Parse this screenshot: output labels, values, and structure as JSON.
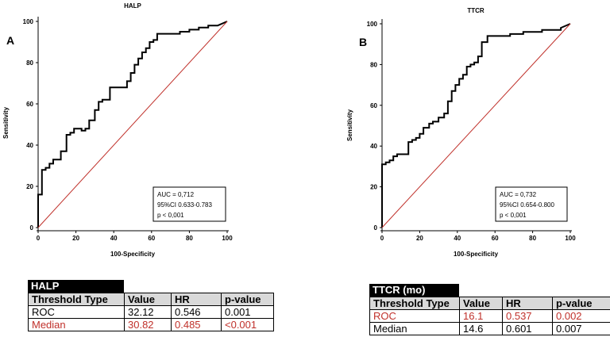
{
  "chart_data": [
    {
      "type": "line",
      "panel_label": "A",
      "title": "HALP",
      "xlabel": "100-Specificity",
      "ylabel": "Sensitivity",
      "xlim": [
        0,
        100
      ],
      "ylim": [
        0,
        100
      ],
      "x_ticks": [
        "0",
        "20",
        "40",
        "60",
        "80",
        "100"
      ],
      "y_ticks": [
        "0",
        "20",
        "40",
        "60",
        "80",
        "100"
      ],
      "series": [
        {
          "name": "ROC curve",
          "color": "#000000",
          "x": [
            0,
            0,
            2,
            2,
            4,
            4,
            6,
            6,
            8,
            8,
            10,
            10,
            12,
            12,
            15,
            15,
            17,
            17,
            19,
            19,
            23,
            23,
            25,
            25,
            27,
            27,
            30,
            30,
            32,
            32,
            34,
            34,
            38,
            38,
            40,
            40,
            42,
            42,
            47,
            47,
            49,
            49,
            51,
            51,
            53,
            53,
            55,
            55,
            57,
            57,
            59,
            59,
            61,
            61,
            63,
            63,
            67,
            67,
            75,
            75,
            80,
            80,
            85,
            85,
            90,
            90,
            95,
            95,
            100
          ],
          "y": [
            0,
            16,
            16,
            28,
            28,
            29,
            29,
            31,
            31,
            33,
            33,
            33,
            33,
            37,
            37,
            45,
            45,
            46,
            46,
            48,
            48,
            47,
            47,
            48,
            48,
            52,
            52,
            57,
            57,
            61,
            61,
            62,
            62,
            68,
            68,
            68,
            68,
            68,
            68,
            71,
            71,
            75,
            75,
            79,
            79,
            82,
            82,
            85,
            85,
            87,
            87,
            90,
            90,
            91,
            91,
            94,
            94,
            94,
            94,
            95,
            95,
            96,
            96,
            97,
            97,
            98,
            98,
            98,
            100
          ]
        },
        {
          "name": "Reference line",
          "color": "#c0312b",
          "x": [
            0,
            100
          ],
          "y": [
            0,
            100
          ]
        }
      ],
      "annotation": [
        "AUC = 0,712",
        "95%CI 0.633-0.783",
        "p < 0,001"
      ]
    },
    {
      "type": "line",
      "panel_label": "B",
      "title": "TTCR",
      "xlabel": "100-Specificity",
      "ylabel": "Sensitivity",
      "xlim": [
        0,
        100
      ],
      "ylim": [
        0,
        100
      ],
      "x_ticks": [
        "0",
        "20",
        "40",
        "60",
        "80",
        "100"
      ],
      "y_ticks": [
        "0",
        "20",
        "40",
        "60",
        "80",
        "100"
      ],
      "series": [
        {
          "name": "ROC curve",
          "color": "#000000",
          "x": [
            0,
            0,
            2,
            2,
            4,
            4,
            6,
            6,
            8,
            8,
            14,
            14,
            16,
            16,
            18,
            18,
            20,
            20,
            22,
            22,
            25,
            25,
            27,
            27,
            30,
            30,
            33,
            33,
            35,
            35,
            37,
            37,
            39,
            39,
            41,
            41,
            43,
            43,
            45,
            45,
            47,
            47,
            49,
            49,
            51,
            51,
            53,
            53,
            56,
            56,
            60,
            60,
            68,
            68,
            75,
            75,
            85,
            85,
            95,
            95,
            100
          ],
          "y": [
            0,
            31,
            31,
            32,
            32,
            33,
            33,
            35,
            35,
            36,
            36,
            42,
            42,
            43,
            43,
            44,
            44,
            46,
            46,
            49,
            49,
            51,
            51,
            52,
            52,
            54,
            54,
            56,
            56,
            62,
            62,
            67,
            67,
            70,
            70,
            73,
            73,
            75,
            75,
            79,
            79,
            80,
            80,
            81,
            81,
            84,
            84,
            91,
            91,
            94,
            94,
            94,
            94,
            95,
            95,
            96,
            96,
            97,
            97,
            98,
            100
          ]
        },
        {
          "name": "Reference line",
          "color": "#c0312b",
          "x": [
            0,
            100
          ],
          "y": [
            0,
            100
          ]
        }
      ],
      "annotation": [
        "AUC = 0,732",
        "95%CI 0.654-0.800",
        "p < 0,001"
      ]
    }
  ],
  "tables": [
    {
      "title": "HALP",
      "columns": [
        "Threshold Type",
        "Value",
        "HR",
        "p-value"
      ],
      "rows": [
        {
          "cells": [
            "ROC",
            "32.12",
            "0.546",
            "0.001"
          ],
          "highlight": false
        },
        {
          "cells": [
            "Median",
            "30.82",
            "0.485",
            "<0.001"
          ],
          "highlight": true
        }
      ]
    },
    {
      "title": "TTCR (mo)",
      "columns": [
        "Threshold Type",
        "Value",
        "HR",
        "p-value"
      ],
      "rows": [
        {
          "cells": [
            "ROC",
            "16.1",
            "0.537",
            "0.002"
          ],
          "highlight": true
        },
        {
          "cells": [
            "Median",
            "14.6",
            "0.601",
            "0.007"
          ],
          "highlight": false
        }
      ]
    }
  ]
}
